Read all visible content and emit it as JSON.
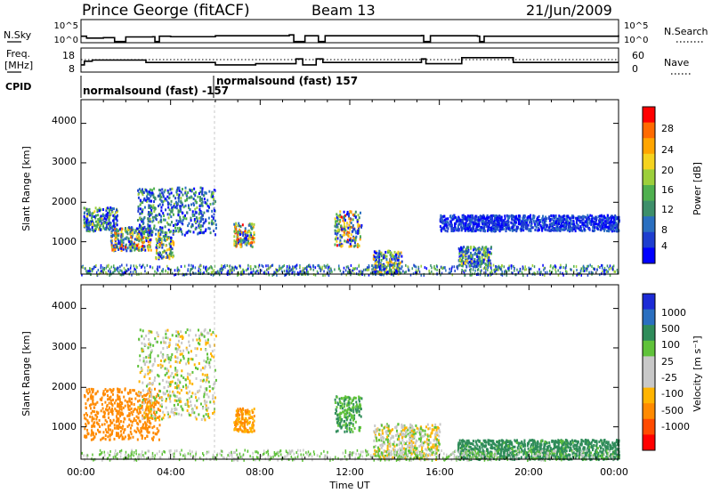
{
  "header": {
    "station": "Prince George (fitACF)",
    "beam": "Beam 13",
    "date": "21/Jun/2009"
  },
  "noise_panel": {
    "left_label": "N.Sky",
    "left_ticks": [
      "10^5",
      "10^0"
    ],
    "right_ticks": [
      "10^5",
      "10^0"
    ],
    "right_label": "N.Search"
  },
  "freq_panel": {
    "left_label_line1": "Freq.",
    "left_label_line2": "[MHz]",
    "left_ticks": [
      "18",
      "8"
    ],
    "right_ticks": [
      "60",
      "0"
    ],
    "right_label": "Nave"
  },
  "cpid": {
    "label": "CPID",
    "modes": [
      "normalsound (fast) -157",
      "normalsound (fast) 157"
    ]
  },
  "power_panel": {
    "ylabel": "Slant Range [km]",
    "yticks": [
      "4000",
      "3000",
      "2000",
      "1000"
    ],
    "colorbar_label": "Power [dB]",
    "colorbar_ticks": [
      "28",
      "24",
      "20",
      "16",
      "12",
      "8",
      "4"
    ],
    "colors": [
      "#0000ff",
      "#1e3ecf",
      "#2a6fc0",
      "#3d8f6a",
      "#4fb04f",
      "#9ccf3b",
      "#f5d31f",
      "#ffa500",
      "#ff6a00",
      "#ff0000"
    ]
  },
  "velocity_panel": {
    "ylabel": "Slant Range [km]",
    "yticks": [
      "4000",
      "3000",
      "2000",
      "1000"
    ],
    "colorbar_label": "Velocity [m s⁻¹]",
    "colorbar_ticks": [
      "1000",
      "500",
      "100",
      "25",
      "-25",
      "-100",
      "-500",
      "-1000"
    ],
    "colors": [
      "#1c2bd6",
      "#2a6fc0",
      "#2f8c5a",
      "#5fc23a",
      "#c8c8c8",
      "#c8c8c8",
      "#ffb400",
      "#ff8a00",
      "#ff4a00",
      "#ff0000"
    ]
  },
  "x_axis": {
    "ticks": [
      "00:00",
      "04:00",
      "08:00",
      "12:00",
      "16:00",
      "20:00",
      "00:00"
    ],
    "label": "Time UT"
  },
  "chart_data": {
    "type": "heatmap",
    "title": "Prince George (fitACF)  Beam 13  21/Jun/2009",
    "xlabel": "Time UT",
    "ylabel": "Slant Range [km]",
    "x_range_hours": [
      0,
      24
    ],
    "y_range_km": [
      180,
      4600
    ],
    "noise_series": [
      {
        "t": 0.0,
        "v": 0.72
      },
      {
        "t": 0.25,
        "v": 0.8
      },
      {
        "t": 1.0,
        "v": 0.78
      },
      {
        "t": 1.5,
        "v": 0.95
      },
      {
        "t": 2.0,
        "v": 0.75
      },
      {
        "t": 3.2,
        "v": 0.74
      },
      {
        "t": 3.3,
        "v": 0.95
      },
      {
        "t": 3.5,
        "v": 0.72
      },
      {
        "t": 4.0,
        "v": 0.74
      },
      {
        "t": 6.0,
        "v": 0.7
      },
      {
        "t": 9.3,
        "v": 0.66
      },
      {
        "t": 9.5,
        "v": 0.95
      },
      {
        "t": 10.0,
        "v": 0.7
      },
      {
        "t": 10.6,
        "v": 0.95
      },
      {
        "t": 10.9,
        "v": 0.7
      },
      {
        "t": 15.2,
        "v": 0.69
      },
      {
        "t": 15.3,
        "v": 0.95
      },
      {
        "t": 15.6,
        "v": 0.7
      },
      {
        "t": 17.7,
        "v": 0.72
      },
      {
        "t": 17.8,
        "v": 0.95
      },
      {
        "t": 18.0,
        "v": 0.72
      },
      {
        "t": 24.0,
        "v": 0.68
      }
    ],
    "frequency_series": [
      {
        "t": 0.0,
        "v": 11.0
      },
      {
        "t": 0.15,
        "v": 12.5
      },
      {
        "t": 0.5,
        "v": 13.0
      },
      {
        "t": 2.9,
        "v": 12.0
      },
      {
        "t": 6.0,
        "v": 11.0
      },
      {
        "t": 7.8,
        "v": 11.5
      },
      {
        "t": 9.6,
        "v": 13.5
      },
      {
        "t": 9.9,
        "v": 11.0
      },
      {
        "t": 10.5,
        "v": 13.5
      },
      {
        "t": 10.8,
        "v": 12.0
      },
      {
        "t": 15.2,
        "v": 13.5
      },
      {
        "t": 15.4,
        "v": 11.5
      },
      {
        "t": 17.0,
        "v": 14.0
      },
      {
        "t": 19.3,
        "v": 12.0
      },
      {
        "t": 24.0,
        "v": 12.0
      }
    ],
    "power_echo_regions": [
      {
        "t0": 0.1,
        "t1": 1.6,
        "r0": 1300,
        "r1": 1900,
        "peak_db": 20
      },
      {
        "t0": 1.3,
        "t1": 3.1,
        "r0": 800,
        "r1": 1400,
        "peak_db": 28
      },
      {
        "t0": 2.5,
        "t1": 6.0,
        "r0": 1200,
        "r1": 2400,
        "peak_db": 16
      },
      {
        "t0": 3.3,
        "t1": 4.1,
        "r0": 600,
        "r1": 1300,
        "peak_db": 24
      },
      {
        "t0": 6.8,
        "t1": 7.7,
        "r0": 900,
        "r1": 1500,
        "peak_db": 28
      },
      {
        "t0": 11.3,
        "t1": 12.5,
        "r0": 900,
        "r1": 1800,
        "peak_db": 28
      },
      {
        "t0": 13.0,
        "t1": 14.3,
        "r0": 200,
        "r1": 800,
        "peak_db": 24
      },
      {
        "t0": 16.8,
        "t1": 18.3,
        "r0": 400,
        "r1": 900,
        "peak_db": 20
      },
      {
        "t0": 16.0,
        "t1": 24.0,
        "r0": 1300,
        "r1": 1700,
        "peak_db": 8
      }
    ],
    "velocity_regions": [
      {
        "t0": 0.1,
        "t1": 3.5,
        "r0": 700,
        "r1": 2000,
        "velocity": -300
      },
      {
        "t0": 2.5,
        "t1": 6.0,
        "r0": 1200,
        "r1": 3500,
        "velocity": 0
      },
      {
        "t0": 6.8,
        "t1": 7.7,
        "r0": 900,
        "r1": 1500,
        "velocity": -100
      },
      {
        "t0": 11.3,
        "t1": 12.5,
        "r0": 900,
        "r1": 1800,
        "velocity": 100
      },
      {
        "t0": 13.0,
        "t1": 16.0,
        "r0": 200,
        "r1": 1100,
        "velocity": 0
      },
      {
        "t0": 16.8,
        "t1": 24.0,
        "r0": 200,
        "r1": 700,
        "velocity": 150
      }
    ]
  }
}
